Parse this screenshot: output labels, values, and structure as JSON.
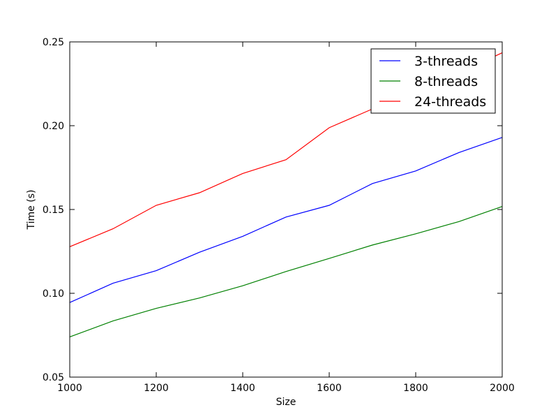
{
  "chart_data": {
    "type": "line",
    "title": "",
    "xlabel": "Size",
    "ylabel": "Time (s)",
    "xlim": [
      1000,
      2000
    ],
    "ylim": [
      0.05,
      0.25
    ],
    "x": [
      1000,
      1100,
      1200,
      1300,
      1400,
      1500,
      1600,
      1700,
      1800,
      1900,
      2000
    ],
    "xticks": [
      "1000",
      "1200",
      "1400",
      "1600",
      "1800",
      "2000"
    ],
    "yticks": [
      "0.05",
      "0.10",
      "0.15",
      "0.20",
      "0.25"
    ],
    "grid": false,
    "legend_position": "top-right",
    "series": [
      {
        "name": "3-threads",
        "color": "#0000ff",
        "values": [
          0.0945,
          0.106,
          0.1135,
          0.1245,
          0.134,
          0.1455,
          0.1525,
          0.1655,
          0.173,
          0.184,
          0.193
        ]
      },
      {
        "name": "8-threads",
        "color": "#008000",
        "values": [
          0.074,
          0.0835,
          0.091,
          0.0972,
          0.1045,
          0.113,
          0.1208,
          0.1288,
          0.1355,
          0.1428,
          0.1518
        ]
      },
      {
        "name": "24-threads",
        "color": "#ff0000",
        "values": [
          0.1278,
          0.1385,
          0.1525,
          0.16,
          0.1715,
          0.1797,
          0.1988,
          0.21,
          0.2205,
          0.2315,
          0.2435
        ]
      }
    ]
  }
}
